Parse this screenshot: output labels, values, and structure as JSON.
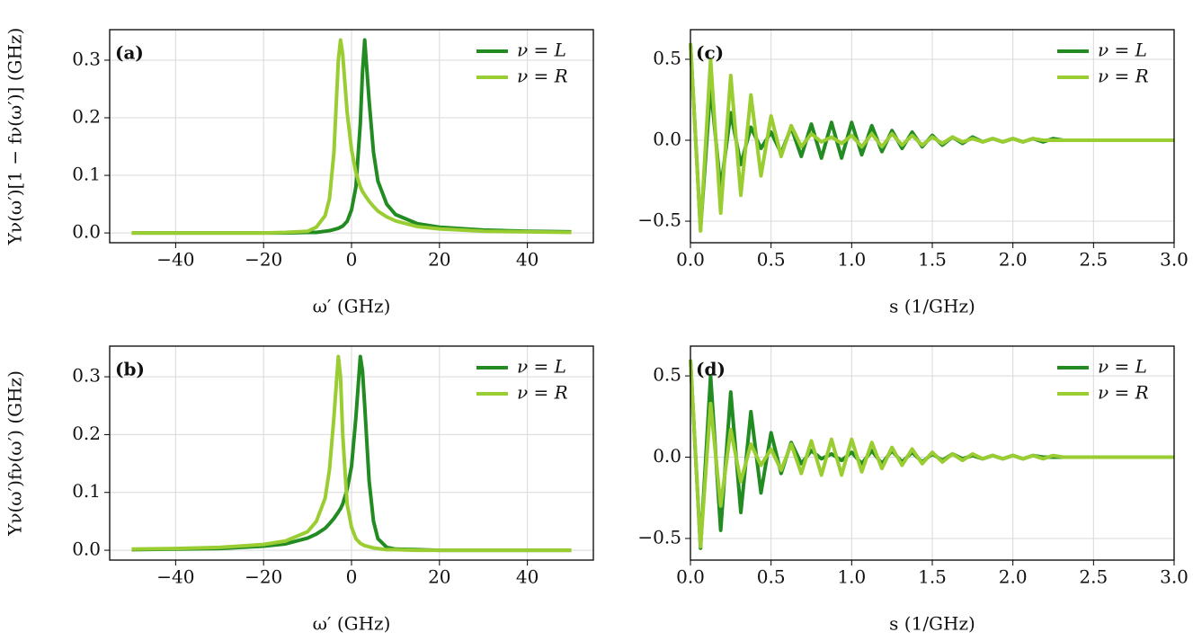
{
  "chart_data": [
    {
      "type": "line",
      "panel_label": "(a)",
      "xlabel": "ω′ (GHz)",
      "ylabel": "Υν(ω′)[1 − fν(ω′)] (GHz)",
      "grid": true,
      "legend": "upper right",
      "xlim": [
        -55,
        55
      ],
      "ylim": [
        -0.017,
        0.353
      ],
      "xticks": [
        {
          "value": -40,
          "label": "−40"
        },
        {
          "value": -20,
          "label": "−20"
        },
        0,
        20,
        40
      ],
      "yticks": [
        {
          "value": 0,
          "label": "0.0"
        },
        0.1,
        0.2,
        0.3
      ],
      "x": [
        -50,
        -40,
        -30,
        -20,
        -15,
        -10,
        -8,
        -6,
        -5,
        -4,
        -3,
        -2.5,
        -2,
        -1,
        0,
        1,
        2,
        2.5,
        3,
        4,
        5,
        6,
        8,
        10,
        15,
        20,
        30,
        40,
        50
      ],
      "series": [
        {
          "name": "ν = L",
          "color": "#228b22",
          "values": [
            0,
            0,
            0,
            0,
            0,
            0.001,
            0.001,
            0.003,
            0.004,
            0.006,
            0.008,
            0.01,
            0.012,
            0.02,
            0.04,
            0.08,
            0.19,
            0.28,
            0.335,
            0.23,
            0.14,
            0.09,
            0.05,
            0.032,
            0.016,
            0.01,
            0.005,
            0.003,
            0.002
          ]
        },
        {
          "name": "ν = R",
          "color": "#9acd32",
          "values": [
            0,
            0,
            0,
            0,
            0.001,
            0.003,
            0.01,
            0.03,
            0.06,
            0.14,
            0.3,
            0.335,
            0.31,
            0.21,
            0.145,
            0.105,
            0.08,
            0.072,
            0.066,
            0.055,
            0.046,
            0.038,
            0.028,
            0.021,
            0.011,
            0.007,
            0.003,
            0.002,
            0.001
          ]
        }
      ]
    },
    {
      "type": "line",
      "panel_label": "(c)",
      "xlabel": "s (1/GHz)",
      "grid": true,
      "legend": "upper right",
      "xlim": [
        0,
        3
      ],
      "ylim": [
        -0.633,
        0.683
      ],
      "xticks": [
        {
          "value": 0,
          "label": "0.0"
        },
        0.5,
        {
          "value": 1,
          "label": "1.0"
        },
        1.5,
        {
          "value": 2,
          "label": "2.0"
        },
        2.5,
        {
          "value": 3,
          "label": "3.0"
        }
      ],
      "yticks": [
        {
          "value": -0.5,
          "label": "−0.5"
        },
        {
          "value": 0,
          "label": "0.0"
        },
        0.5
      ],
      "x": [
        0,
        0.0625,
        0.125,
        0.1875,
        0.25,
        0.3125,
        0.375,
        0.4375,
        0.5,
        0.5625,
        0.625,
        0.6875,
        0.75,
        0.8125,
        0.875,
        0.9375,
        1,
        1.0625,
        1.125,
        1.1875,
        1.25,
        1.3125,
        1.375,
        1.4375,
        1.5,
        1.5625,
        1.625,
        1.6875,
        1.75,
        1.8125,
        1.875,
        1.9375,
        2,
        2.0625,
        2.125,
        2.1875,
        2.25,
        2.3125,
        2.375,
        2.4375,
        2.5,
        2.5625,
        2.625,
        2.6875,
        2.75,
        2.8125,
        2.875,
        2.9375,
        3
      ],
      "series": [
        {
          "name": "ν = L",
          "color": "#228b22",
          "values": [
            0.6,
            -0.55,
            0.33,
            -0.3,
            0.17,
            -0.15,
            0.08,
            -0.05,
            0.05,
            -0.08,
            0.08,
            -0.1,
            0.1,
            -0.11,
            0.11,
            -0.11,
            0.11,
            -0.09,
            0.09,
            -0.07,
            0.06,
            -0.05,
            0.05,
            -0.04,
            0.03,
            -0.03,
            0.02,
            -0.02,
            0.02,
            -0.01,
            0.01,
            -0.01,
            0.01,
            -0.01,
            0.01,
            -0.01,
            0.01,
            0,
            0,
            0,
            0,
            0,
            0,
            0,
            0,
            0,
            0,
            0,
            0
          ]
        },
        {
          "name": "ν = R",
          "color": "#9acd32",
          "values": [
            0.6,
            -0.56,
            0.5,
            -0.45,
            0.4,
            -0.34,
            0.28,
            -0.22,
            0.15,
            -0.1,
            0.09,
            -0.04,
            0.04,
            -0.01,
            0.02,
            -0.02,
            0.03,
            -0.04,
            0.04,
            -0.04,
            0.04,
            -0.03,
            0.03,
            -0.03,
            0.02,
            -0.02,
            0.02,
            -0.01,
            0.01,
            -0.01,
            0.01,
            -0.01,
            0.01,
            -0.01,
            0.01,
            0,
            0,
            0,
            0,
            0,
            0,
            0,
            0,
            0,
            0,
            0,
            0,
            0,
            0
          ]
        }
      ]
    },
    {
      "type": "line",
      "panel_label": "(b)",
      "xlabel": "ω′ (GHz)",
      "ylabel": "Υν(ω′)fν(ω′) (GHz)",
      "grid": true,
      "legend": "upper right",
      "xlim": [
        -55,
        55
      ],
      "ylim": [
        -0.017,
        0.353
      ],
      "xticks": [
        {
          "value": -40,
          "label": "−40"
        },
        {
          "value": -20,
          "label": "−20"
        },
        0,
        20,
        40
      ],
      "yticks": [
        {
          "value": 0,
          "label": "0.0"
        },
        0.1,
        0.2,
        0.3
      ],
      "x": [
        -50,
        -40,
        -30,
        -20,
        -15,
        -10,
        -8,
        -6,
        -5,
        -4,
        -3,
        -2.5,
        -2,
        -1,
        0,
        1,
        2,
        2.5,
        3,
        4,
        5,
        6,
        8,
        10,
        15,
        20,
        30,
        40,
        50
      ],
      "series": [
        {
          "name": "ν = L",
          "color": "#228b22",
          "values": [
            0.001,
            0.002,
            0.003,
            0.007,
            0.011,
            0.021,
            0.028,
            0.038,
            0.046,
            0.055,
            0.066,
            0.072,
            0.08,
            0.105,
            0.145,
            0.23,
            0.335,
            0.31,
            0.25,
            0.12,
            0.05,
            0.02,
            0.005,
            0.002,
            0.001,
            0,
            0,
            0,
            0
          ]
        },
        {
          "name": "ν = R",
          "color": "#9acd32",
          "values": [
            0.002,
            0.003,
            0.005,
            0.01,
            0.016,
            0.032,
            0.05,
            0.09,
            0.14,
            0.23,
            0.335,
            0.3,
            0.2,
            0.08,
            0.04,
            0.02,
            0.012,
            0.01,
            0.008,
            0.006,
            0.004,
            0.003,
            0.001,
            0.001,
            0,
            0,
            0,
            0,
            0
          ]
        }
      ]
    },
    {
      "type": "line",
      "panel_label": "(d)",
      "xlabel": "s (1/GHz)",
      "grid": true,
      "legend": "upper right",
      "xlim": [
        0,
        3
      ],
      "ylim": [
        -0.633,
        0.683
      ],
      "xticks": [
        {
          "value": 0,
          "label": "0.0"
        },
        0.5,
        {
          "value": 1,
          "label": "1.0"
        },
        1.5,
        {
          "value": 2,
          "label": "2.0"
        },
        2.5,
        {
          "value": 3,
          "label": "3.0"
        }
      ],
      "yticks": [
        {
          "value": -0.5,
          "label": "−0.5"
        },
        {
          "value": 0,
          "label": "0.0"
        },
        0.5
      ],
      "x": [
        0,
        0.0625,
        0.125,
        0.1875,
        0.25,
        0.3125,
        0.375,
        0.4375,
        0.5,
        0.5625,
        0.625,
        0.6875,
        0.75,
        0.8125,
        0.875,
        0.9375,
        1,
        1.0625,
        1.125,
        1.1875,
        1.25,
        1.3125,
        1.375,
        1.4375,
        1.5,
        1.5625,
        1.625,
        1.6875,
        1.75,
        1.8125,
        1.875,
        1.9375,
        2,
        2.0625,
        2.125,
        2.1875,
        2.25,
        2.3125,
        2.375,
        2.4375,
        2.5,
        2.5625,
        2.625,
        2.6875,
        2.75,
        2.8125,
        2.875,
        2.9375,
        3
      ],
      "series": [
        {
          "name": "ν = L",
          "color": "#228b22",
          "values": [
            0.6,
            -0.56,
            0.5,
            -0.45,
            0.4,
            -0.34,
            0.28,
            -0.22,
            0.15,
            -0.1,
            0.09,
            -0.04,
            0.04,
            -0.01,
            0.02,
            -0.02,
            0.03,
            -0.04,
            0.04,
            -0.04,
            0.04,
            -0.03,
            0.03,
            -0.03,
            0.02,
            -0.02,
            0.02,
            -0.01,
            0.01,
            -0.01,
            0.01,
            -0.01,
            0.01,
            -0.01,
            0.01,
            0,
            0,
            0,
            0,
            0,
            0,
            0,
            0,
            0,
            0,
            0,
            0,
            0,
            0
          ]
        },
        {
          "name": "ν = R",
          "color": "#9acd32",
          "values": [
            0.6,
            -0.55,
            0.33,
            -0.3,
            0.17,
            -0.15,
            0.08,
            -0.05,
            0.05,
            -0.08,
            0.08,
            -0.1,
            0.1,
            -0.11,
            0.11,
            -0.11,
            0.11,
            -0.09,
            0.09,
            -0.07,
            0.06,
            -0.05,
            0.05,
            -0.04,
            0.03,
            -0.03,
            0.02,
            -0.02,
            0.02,
            -0.01,
            0.01,
            -0.01,
            0.01,
            -0.01,
            0.01,
            -0.01,
            0.01,
            0,
            0,
            0,
            0,
            0,
            0,
            0,
            0,
            0,
            0,
            0,
            0
          ]
        }
      ]
    }
  ]
}
